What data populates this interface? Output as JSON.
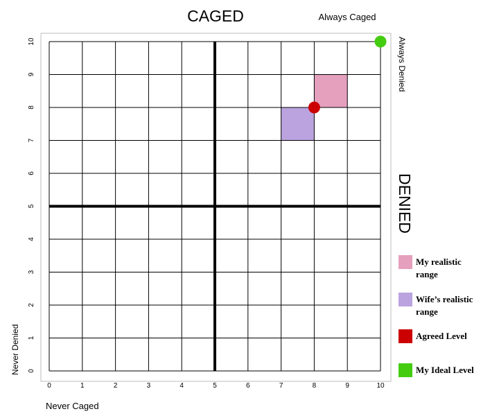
{
  "chart_data": {
    "type": "scatter",
    "title": "CAGED",
    "right_label": "DENIED",
    "corner_labels": {
      "top_right": "Always Caged",
      "right_top": "Always Denied",
      "left_bottom": "Never Denied",
      "bottom_left": "Never Caged"
    },
    "xlim": [
      0,
      10
    ],
    "ylim": [
      0,
      10
    ],
    "x_ticks": [
      "0",
      "1",
      "2",
      "3",
      "4",
      "5",
      "6",
      "7",
      "8",
      "9",
      "10"
    ],
    "y_ticks": [
      "0",
      "1",
      "2",
      "3",
      "4",
      "5",
      "6",
      "7",
      "8",
      "9",
      "10"
    ],
    "grid": true,
    "quadrant_lines": {
      "x": 5,
      "y": 5
    },
    "regions": [
      {
        "name": "My realistic range",
        "x": [
          8,
          9
        ],
        "y": [
          8,
          9
        ],
        "color": "#e4a0bd"
      },
      {
        "name": "Wife’s realistic range",
        "x": [
          7,
          8
        ],
        "y": [
          7,
          8
        ],
        "color": "#bba3df"
      }
    ],
    "points": [
      {
        "name": "Agreed Level",
        "x": 8,
        "y": 8,
        "color": "#cc0000"
      },
      {
        "name": "My Ideal Level",
        "x": 10,
        "y": 10,
        "color": "#44cc11"
      }
    ],
    "legend": {
      "placement": "right",
      "items": [
        {
          "lines": [
            "My realistic",
            "range"
          ],
          "color": "#e4a0bd"
        },
        {
          "lines": [
            "Wife’s realistic",
            "range"
          ],
          "color": "#bba3df"
        },
        {
          "lines": [
            "Agreed Level"
          ],
          "color": "#cc0000"
        },
        {
          "lines": [
            "My Ideal Level"
          ],
          "color": "#44cc11"
        }
      ]
    }
  }
}
